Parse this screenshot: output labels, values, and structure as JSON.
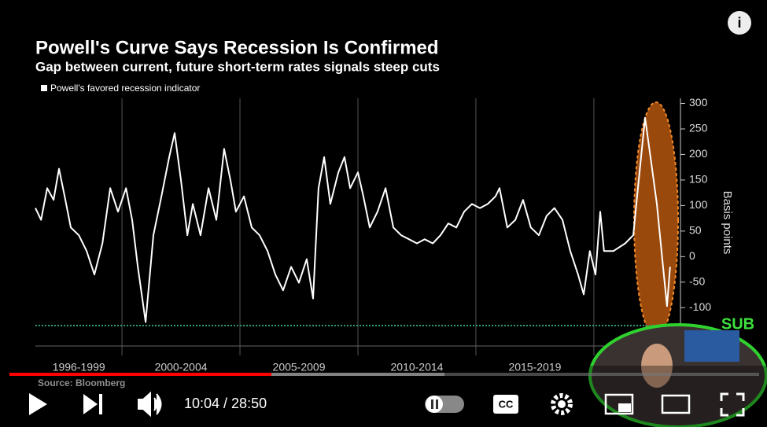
{
  "chart_data": {
    "type": "line",
    "title": "Powell's Curve Says Recession Is Confirmed",
    "subtitle": "Gap between current, future short-term rates signals steep cuts",
    "y_label": "Basis points",
    "source": "Source: Bloomberg",
    "x": [
      1996.33,
      1996.57,
      1996.83,
      1997.1,
      1997.33,
      1997.57,
      1997.83,
      1998.17,
      1998.5,
      1998.83,
      1999.17,
      1999.5,
      1999.83,
      2000.17,
      2000.43,
      2000.67,
      2001,
      2001.33,
      2001.67,
      2002,
      2002.23,
      2002.5,
      2002.77,
      2003,
      2003.33,
      2003.67,
      2004,
      2004.33,
      2004.6,
      2004.83,
      2005.17,
      2005.5,
      2005.83,
      2006.17,
      2006.5,
      2006.83,
      2007.17,
      2007.5,
      2007.83,
      2008.1,
      2008.33,
      2008.57,
      2008.83,
      2009.17,
      2009.43,
      2009.67,
      2010,
      2010.23,
      2010.5,
      2010.83,
      2011.17,
      2011.5,
      2011.83,
      2012.17,
      2012.5,
      2012.83,
      2013.17,
      2013.5,
      2013.83,
      2014.17,
      2014.5,
      2014.83,
      2015.17,
      2015.5,
      2015.83,
      2016,
      2016.33,
      2016.67,
      2017,
      2017.33,
      2017.67,
      2018,
      2018.33,
      2018.67,
      2019,
      2019.33,
      2019.57,
      2019.83,
      2020.07,
      2020.27,
      2020.43,
      2020.83,
      2021.33,
      2021.67,
      2021.9,
      2022.17,
      2022.4,
      2022.67,
      2022.9,
      2023.1,
      2023.23
    ],
    "series": [
      {
        "name": "Powell's favored recession indicator",
        "color": "#ffffff",
        "values": [
          95,
          72,
          134,
          111,
          172,
          118,
          57,
          42,
          11,
          -35,
          26,
          134,
          88,
          134,
          72,
          -20,
          -128,
          42,
          118,
          195,
          242,
          149,
          42,
          103,
          42,
          134,
          72,
          211,
          149,
          88,
          118,
          57,
          42,
          11,
          -35,
          -66,
          -20,
          -51,
          -5,
          -82,
          134,
          195,
          103,
          165,
          195,
          134,
          165,
          118,
          57,
          88,
          134,
          57,
          42,
          34,
          26,
          34,
          26,
          42,
          65,
          57,
          88,
          103,
          95,
          103,
          118,
          134,
          57,
          72,
          111,
          57,
          42,
          80,
          95,
          72,
          11,
          -35,
          -74,
          11,
          -35,
          88,
          11,
          11,
          26,
          42,
          149,
          272,
          195,
          103,
          -5,
          -97,
          -20
        ]
      }
    ],
    "xlim": [
      1996.33,
      2023.67
    ],
    "ylim": [
      -175,
      310
    ],
    "yticks": [
      300,
      250,
      200,
      150,
      100,
      50,
      0,
      -50,
      -100
    ],
    "xticks": [
      {
        "value": 1998.17,
        "label": "1996-1999"
      },
      {
        "value": 2002.5,
        "label": "2000-2004"
      },
      {
        "value": 2007.5,
        "label": "2005-2009"
      },
      {
        "value": 2012.5,
        "label": "2010-2014"
      },
      {
        "value": 2017.5,
        "label": "2015-2019"
      }
    ],
    "xgrid": [
      2000,
      2005,
      2010,
      2015,
      2020
    ],
    "ref_line": -135,
    "ref_color": "#2e9c7a"
  },
  "player": {
    "time": "10:04 / 28:50",
    "overlay": "SUB"
  }
}
